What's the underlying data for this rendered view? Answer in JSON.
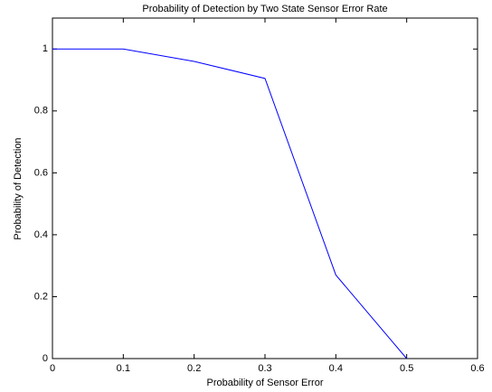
{
  "chart_data": {
    "type": "line",
    "title": "Probability of Detection by Two State Sensor Error Rate",
    "x_label": "Probability of Sensor Error",
    "y_label": "Probability of Detection",
    "x": [
      0,
      0.1,
      0.2,
      0.3,
      0.4,
      0.5
    ],
    "values": [
      1,
      1,
      0.96,
      0.905,
      0.27,
      0
    ],
    "color": "#0000ff",
    "xlim": [
      0,
      0.6
    ],
    "xticks": [
      0,
      0.1,
      0.2,
      0.3,
      0.4,
      0.5,
      0.6
    ],
    "ylim": [
      0,
      1.1
    ],
    "yticks": [
      0,
      0.2,
      0.4,
      0.6,
      0.8,
      1
    ],
    "grid": false
  }
}
